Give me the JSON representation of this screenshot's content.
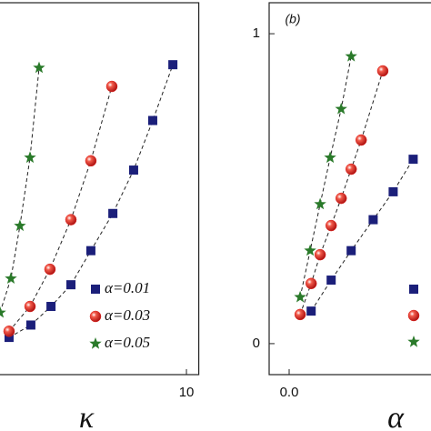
{
  "chart_data": [
    {
      "type": "scatter",
      "xlabel": "κ",
      "xlim": [
        -0.5,
        10.6
      ],
      "ylim": [
        -0.1,
        1.1
      ],
      "xticks": [
        10
      ],
      "series": [
        {
          "name": "α=0.01",
          "marker": "square",
          "color": "#1b1f7a",
          "x": [
            1.37,
            2.43,
            3.41,
            4.38,
            5.35,
            6.42,
            7.43,
            8.36,
            9.34
          ],
          "values": [
            0.02,
            0.06,
            0.12,
            0.19,
            0.3,
            0.42,
            0.56,
            0.72,
            0.9
          ]
        },
        {
          "name": "α=0.03",
          "marker": "circle",
          "color": "#e3231f",
          "x": [
            1.37,
            2.39,
            3.36,
            4.38,
            5.35,
            6.37
          ],
          "values": [
            0.04,
            0.12,
            0.24,
            0.4,
            0.59,
            0.83
          ]
        },
        {
          "name": "α=0.05",
          "marker": "star",
          "color": "#2a7a2a",
          "x": [
            0.93,
            1.46,
            1.9,
            2.39,
            2.83
          ],
          "values": [
            0.1,
            0.21,
            0.38,
            0.6,
            0.89
          ]
        }
      ]
    },
    {
      "type": "scatter",
      "xlabel": "α",
      "annotation": "(b)",
      "xlim": [
        -0.01,
        0.075
      ],
      "ylim": [
        -0.1,
        1.1
      ],
      "xticks": [
        {
          "value": 0,
          "label": "0.0"
        }
      ],
      "yticks": [
        0,
        1
      ],
      "series": [
        {
          "marker": "square",
          "color": "#1b1f7a",
          "x": [
            0.011,
            0.021,
            0.031,
            0.042,
            0.052,
            0.062
          ],
          "values": [
            0.105,
            0.205,
            0.3,
            0.4,
            0.49,
            0.595
          ]
        },
        {
          "marker": "circle",
          "color": "#e3231f",
          "x": [
            0.0055,
            0.011,
            0.0155,
            0.021,
            0.026,
            0.031,
            0.036,
            0.0468
          ],
          "values": [
            0.094,
            0.194,
            0.287,
            0.381,
            0.469,
            0.563,
            0.657,
            0.88
          ]
        },
        {
          "marker": "star",
          "color": "#2a7a2a",
          "x": [
            0.0055,
            0.0105,
            0.0155,
            0.0205,
            0.026,
            0.031
          ],
          "values": [
            0.15,
            0.3,
            0.45,
            0.6,
            0.757,
            0.927
          ]
        }
      ]
    }
  ]
}
